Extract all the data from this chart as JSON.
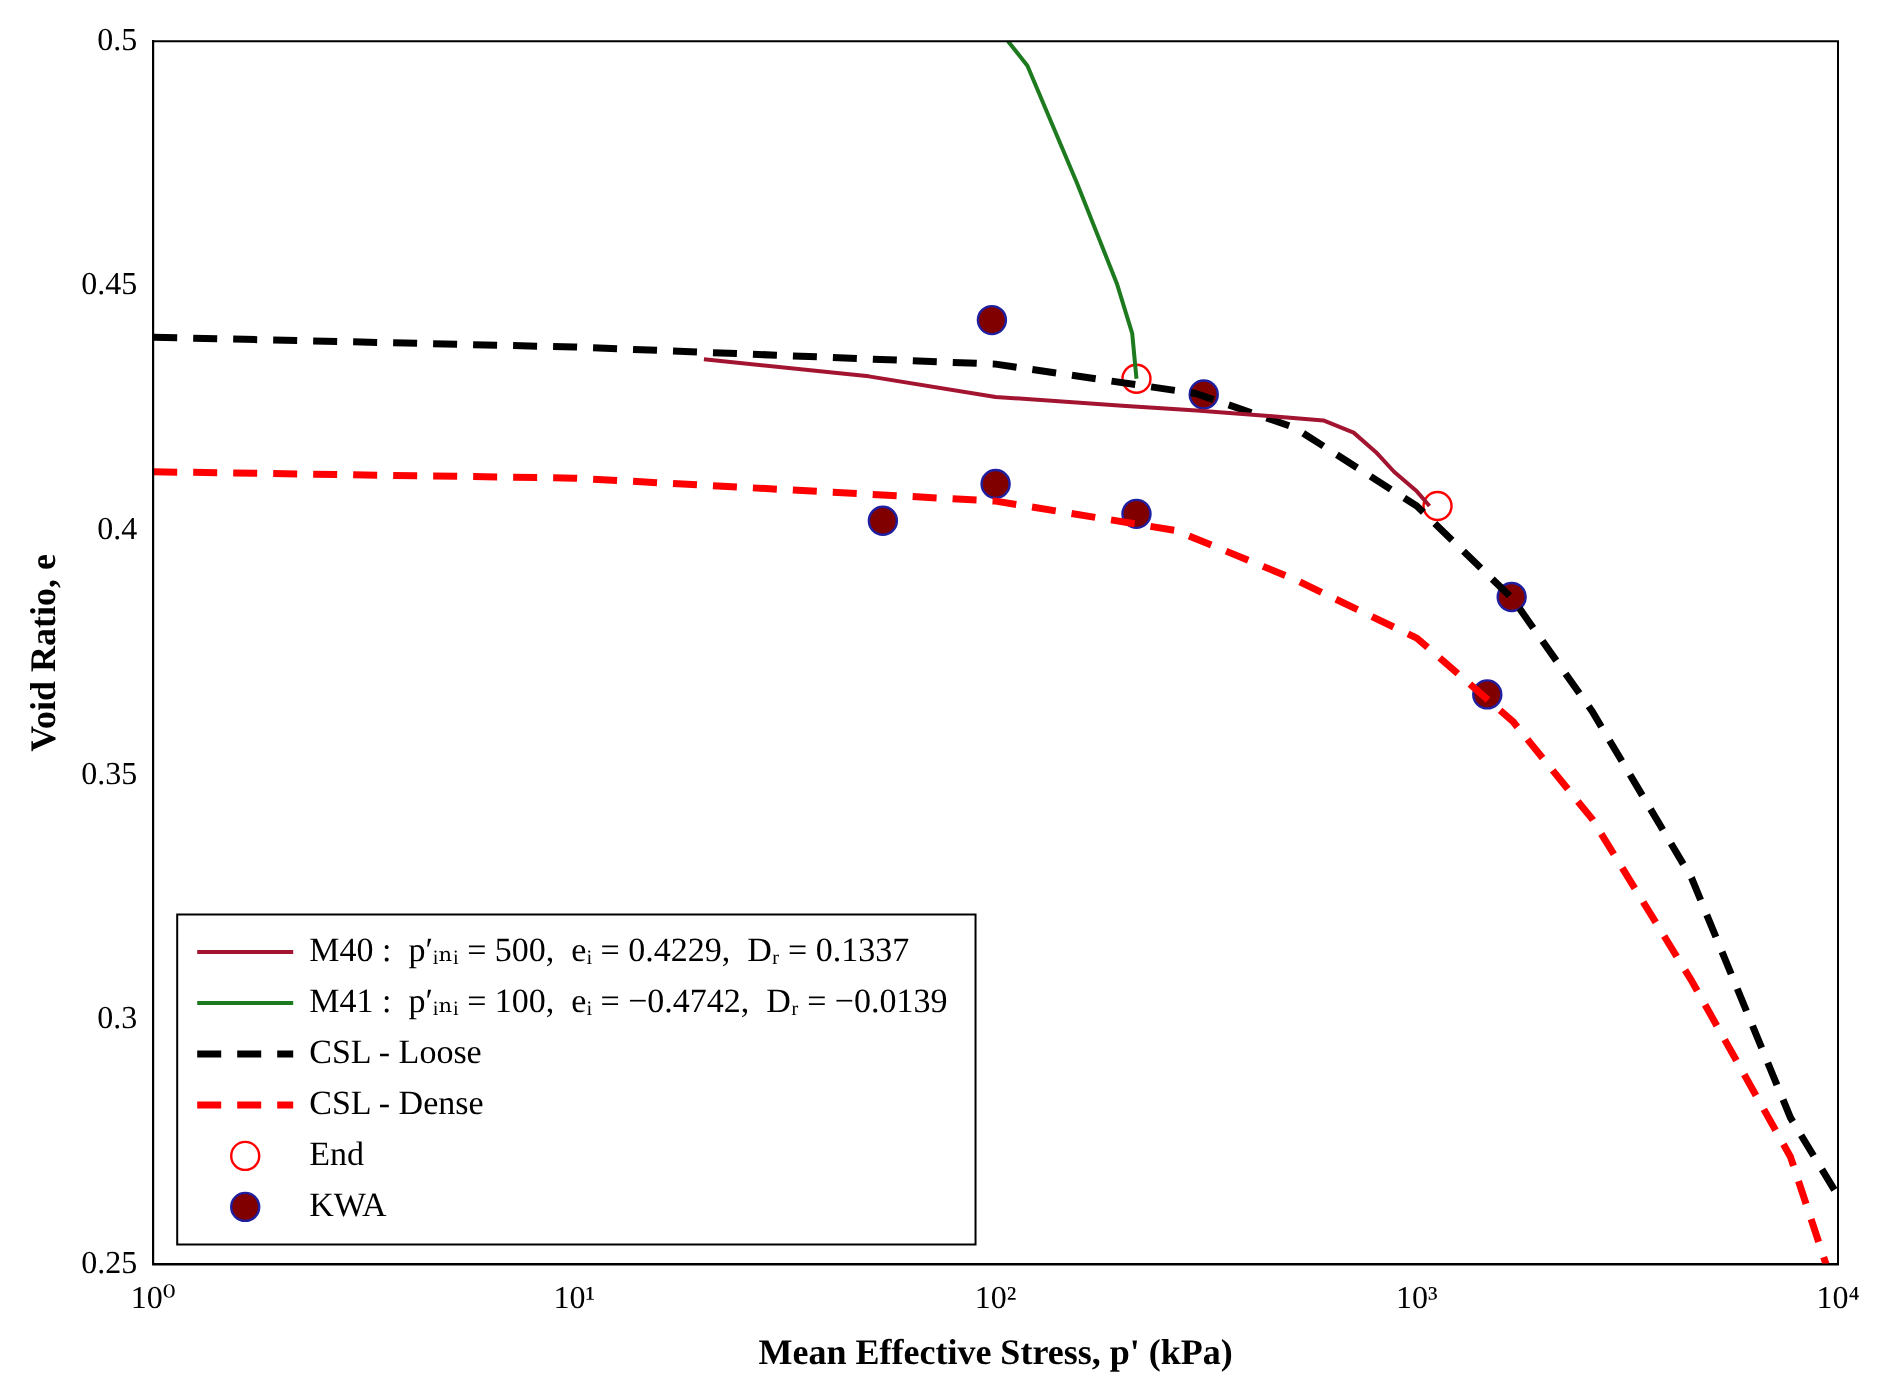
{
  "chart_data": {
    "type": "line",
    "xlabel": "Mean Effective Stress, p' (kPa)",
    "ylabel": "Void Ratio, e",
    "log": "x",
    "grid": false,
    "legend": "bottom left",
    "xlim": [
      1,
      10000
    ],
    "xticks": [
      {
        "value": 1,
        "label": "10⁰"
      },
      {
        "value": 10,
        "label": "10¹"
      },
      {
        "value": 100,
        "label": "10²"
      },
      {
        "value": 1000,
        "label": "10³"
      },
      {
        "value": 10000,
        "label": "10⁴"
      }
    ],
    "ylim": [
      0.25,
      0.5
    ],
    "yticks": [
      0.25,
      0.3,
      0.35,
      0.4,
      0.45,
      0.5
    ],
    "series": [
      {
        "name": "M40 :  p′ᵢₙᵢ = 500,  eᵢ = 0.4229,  Dᵣ = 0.1337",
        "color": "#a2142f",
        "line_style": "solid",
        "marker": "none",
        "x": [
          20.3,
          50,
          100,
          200,
          300,
          461,
          600,
          708,
          800,
          883,
          1000,
          1072
        ],
        "values": [
          0.435,
          0.4315,
          0.4273,
          0.4255,
          0.4245,
          0.4233,
          0.4225,
          0.42,
          0.416,
          0.412,
          0.408,
          0.405
        ]
      },
      {
        "name": "M41 :  p′ᵢₙᵢ = 100,  eᵢ = −0.4742,  Dᵣ = −0.0139",
        "color": "#1e7a1e",
        "line_style": "solid",
        "marker": "none",
        "x": [
          107,
          119,
          156,
          194,
          211,
          216
        ],
        "values": [
          0.5,
          0.495,
          0.471,
          0.4505,
          0.4403,
          0.431
        ]
      },
      {
        "name": "CSL - Loose",
        "color": "#000000",
        "line_style": "dashed",
        "marker": "none",
        "x": [
          1,
          10,
          100,
          299,
          513,
          1000,
          1690,
          2610,
          4490,
          7710,
          10000
        ],
        "values": [
          0.4395,
          0.4375,
          0.434,
          0.428,
          0.421,
          0.405,
          0.386,
          0.363,
          0.329,
          0.28,
          0.264
        ]
      },
      {
        "name": "CSL - Dense",
        "color": "#ff0000",
        "line_style": "dashed",
        "marker": "none",
        "x": [
          1,
          10,
          100,
          268,
          513,
          1000,
          1690,
          2610,
          4490,
          7710,
          9370
        ],
        "values": [
          0.412,
          0.4107,
          0.406,
          0.4,
          0.39,
          0.378,
          0.361,
          0.341,
          0.308,
          0.272,
          0.25
        ]
      },
      {
        "name": "End",
        "type": "scatter",
        "color": "#ff0000",
        "marker": "circle",
        "x": [
          216,
          1120
        ],
        "values": [
          0.431,
          0.405
        ]
      },
      {
        "name": "KWA",
        "type": "scatter",
        "color": "#800000",
        "marker": "circle",
        "x": [
          98,
          100,
          54,
          216,
          312,
          1680,
          1470
        ],
        "values": [
          0.443,
          0.4095,
          0.402,
          0.4034,
          0.4278,
          0.3864,
          0.3665
        ]
      }
    ]
  }
}
